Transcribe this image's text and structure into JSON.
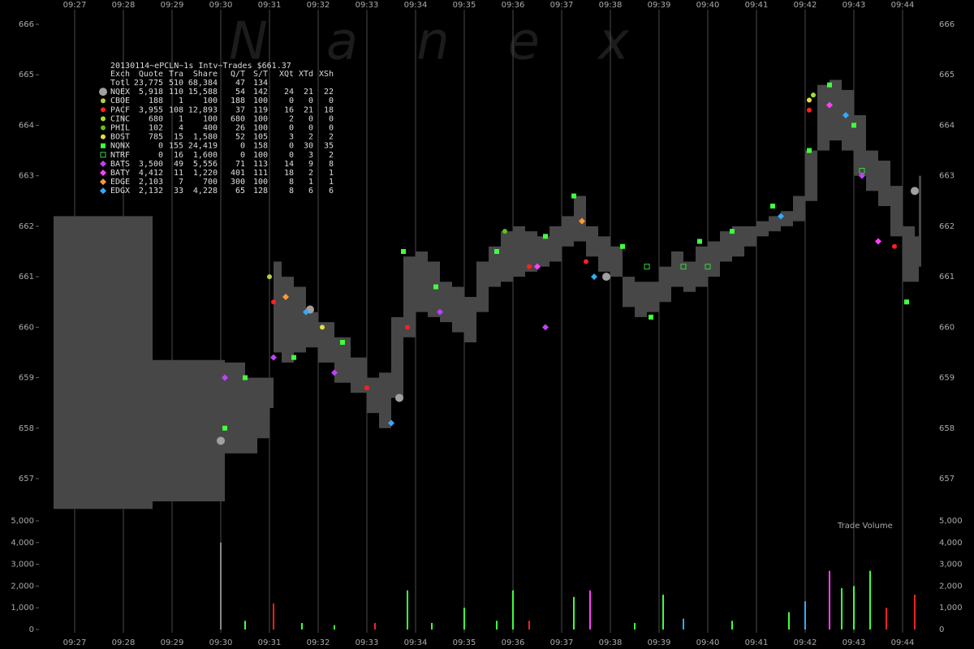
{
  "watermark": "Nanex",
  "chart_data": [
    {
      "type": "range",
      "title": "20130114~ePCLN~1s Intv~Trades $661.37",
      "color": "#474747",
      "xlim": [
        "09:25:28",
        "09:45:28"
      ],
      "xticks": [
        "09:27",
        "09:28",
        "09:29",
        "09:30",
        "09:31",
        "09:32",
        "09:33",
        "09:34",
        "09:35",
        "09:36",
        "09:37",
        "09:38",
        "09:39",
        "09:40",
        "09:41",
        "09:42",
        "09:43",
        "09:44"
      ],
      "ylim": [
        657,
        666
      ],
      "yticks": [
        657,
        658,
        659,
        660,
        661,
        662,
        663,
        664,
        665,
        666
      ],
      "grid": true,
      "x": [
        "09:26:34",
        "09:28:36",
        "09:30:05",
        "09:30:10",
        "09:30:30",
        "09:30:45",
        "09:31:00",
        "09:31:05",
        "09:31:15",
        "09:31:30",
        "09:31:45",
        "09:32:00",
        "09:32:20",
        "09:32:40",
        "09:33:00",
        "09:33:15",
        "09:33:30",
        "09:33:45",
        "09:34:00",
        "09:34:15",
        "09:34:30",
        "09:34:45",
        "09:35:00",
        "09:35:15",
        "09:35:30",
        "09:35:45",
        "09:36:00",
        "09:36:15",
        "09:36:30",
        "09:36:45",
        "09:37:00",
        "09:37:15",
        "09:37:30",
        "09:37:45",
        "09:38:00",
        "09:38:15",
        "09:38:30",
        "09:38:45",
        "09:39:00",
        "09:39:15",
        "09:39:30",
        "09:39:45",
        "09:40:00",
        "09:40:15",
        "09:40:30",
        "09:40:45",
        "09:41:00",
        "09:41:15",
        "09:41:30",
        "09:41:45",
        "09:42:00",
        "09:42:15",
        "09:42:30",
        "09:42:45",
        "09:43:00",
        "09:43:15",
        "09:43:30",
        "09:43:45",
        "09:44:00",
        "09:44:15",
        "09:44:20"
      ],
      "high": [
        662.2,
        659.35,
        659.3,
        659.3,
        659.0,
        659.0,
        659.0,
        661.3,
        661.0,
        660.8,
        660.3,
        660.1,
        659.8,
        659.4,
        659.0,
        659.1,
        660.2,
        661.4,
        661.5,
        661.3,
        660.9,
        660.8,
        660.6,
        661.3,
        661.6,
        661.9,
        662.0,
        661.9,
        661.8,
        662.0,
        662.2,
        662.6,
        662.0,
        661.8,
        661.6,
        661.0,
        660.9,
        660.9,
        661.2,
        661.5,
        661.3,
        661.6,
        661.7,
        661.9,
        662.0,
        662.0,
        662.1,
        662.2,
        662.3,
        662.6,
        663.5,
        664.8,
        664.9,
        664.7,
        664.2,
        663.5,
        663.3,
        662.8,
        662.0,
        661.8,
        663.0
      ],
      "low": [
        656.4,
        656.55,
        657.5,
        657.5,
        657.5,
        657.8,
        658.4,
        659.5,
        659.3,
        659.5,
        659.6,
        659.3,
        658.9,
        658.7,
        658.3,
        658.0,
        658.6,
        659.8,
        660.3,
        660.2,
        660.1,
        659.9,
        659.7,
        660.3,
        660.8,
        660.9,
        661.0,
        661.1,
        661.2,
        661.3,
        661.6,
        661.7,
        661.4,
        661.1,
        661.0,
        660.4,
        660.2,
        660.3,
        660.5,
        660.8,
        660.7,
        660.8,
        661.0,
        661.3,
        661.4,
        661.6,
        661.8,
        661.9,
        662.0,
        662.1,
        662.5,
        663.5,
        663.7,
        663.5,
        663.0,
        662.7,
        662.4,
        661.8,
        660.9,
        660.9,
        661.2
      ],
      "table": {
        "columns": [
          "Exch",
          "Quote",
          "Tra",
          "Share",
          "Q/T",
          "S/T",
          "XQt",
          "XTd",
          "XSh"
        ],
        "rows": [
          {
            "cells": [
              "Totl",
              "23,775",
              "510",
              "68,384",
              "47",
              "134"
            ]
          },
          {
            "cells": [
              "NQEX",
              "5,918",
              "110",
              "15,588",
              "54",
              "142",
              "24",
              "21",
              "22"
            ],
            "color": "#a0a0a0",
            "shape": "big-circle",
            "trades": {
              "x": [
                "09:30:00",
                "09:31:50",
                "09:33:40",
                "09:37:55",
                "09:44:15"
              ],
              "values": [
                657.75,
                660.35,
                658.6,
                661.0,
                662.7
              ]
            }
          },
          {
            "cells": [
              "CBOE",
              "188",
              "1",
              "100",
              "188",
              "100",
              "0",
              "0",
              "0"
            ],
            "color": "#b8d040",
            "shape": "circle",
            "trades": {
              "x": [
                "09:31:00"
              ],
              "values": [
                661.0
              ]
            }
          },
          {
            "cells": [
              "PACF",
              "3,955",
              "108",
              "12,893",
              "37",
              "119",
              "16",
              "21",
              "18"
            ],
            "color": "#ff2020",
            "shape": "circle",
            "trades": {
              "x": [
                "09:31:05",
                "09:33:00",
                "09:33:50",
                "09:36:20",
                "09:37:30",
                "09:42:05",
                "09:43:50"
              ],
              "values": [
                660.5,
                658.8,
                660.0,
                661.2,
                661.3,
                664.3,
                661.6
              ]
            }
          },
          {
            "cells": [
              "CINC",
              "680",
              "1",
              "100",
              "680",
              "100",
              "2",
              "0",
              "0"
            ],
            "color": "#a0e030",
            "shape": "circle",
            "trades": {
              "x": [
                "09:42:10"
              ],
              "values": [
                664.6
              ]
            }
          },
          {
            "cells": [
              "PHIL",
              "102",
              "4",
              "400",
              "26",
              "100",
              "0",
              "0",
              "0"
            ],
            "color": "#60c020",
            "shape": "circle",
            "trades": {
              "x": [
                "09:35:50"
              ],
              "values": [
                661.9
              ]
            }
          },
          {
            "cells": [
              "BOST",
              "785",
              "15",
              "1,580",
              "52",
              "105",
              "3",
              "2",
              "2"
            ],
            "color": "#e0e040",
            "shape": "circle",
            "trades": {
              "x": [
                "09:32:05",
                "09:42:05"
              ],
              "values": [
                660.0,
                664.5
              ]
            }
          },
          {
            "cells": [
              "NQNX",
              "0",
              "155",
              "24,419",
              "0",
              "158",
              "0",
              "30",
              "35"
            ],
            "color": "#40ff40",
            "shape": "square",
            "trades": {
              "x": [
                "09:30:05",
                "09:30:30",
                "09:31:30",
                "09:32:30",
                "09:33:45",
                "09:34:25",
                "09:35:40",
                "09:36:40",
                "09:37:15",
                "09:38:15",
                "09:38:50",
                "09:39:50",
                "09:40:30",
                "09:41:20",
                "09:42:05",
                "09:42:30",
                "09:43:00",
                "09:44:05"
              ],
              "values": [
                658.0,
                659.0,
                659.4,
                659.7,
                661.5,
                660.8,
                661.5,
                661.8,
                662.6,
                661.6,
                660.2,
                661.7,
                661.9,
                662.4,
                663.5,
                664.8,
                664.0,
                660.5
              ]
            }
          },
          {
            "cells": [
              "NTRF",
              "0",
              "16",
              "1,600",
              "0",
              "100",
              "0",
              "3",
              "2"
            ],
            "color": "#40d040",
            "shape": "square-outline",
            "trades": {
              "x": [
                "09:38:45",
                "09:39:30",
                "09:40:00",
                "09:43:10"
              ],
              "values": [
                661.2,
                661.2,
                661.2,
                663.1
              ]
            }
          },
          {
            "cells": [
              "BATS",
              "3,500",
              "49",
              "5,556",
              "71",
              "113",
              "14",
              "9",
              "8"
            ],
            "color": "#c040ff",
            "shape": "diamond",
            "trades": {
              "x": [
                "09:30:05",
                "09:31:05",
                "09:32:20",
                "09:34:30",
                "09:36:40",
                "09:43:10"
              ],
              "values": [
                659.0,
                659.4,
                659.1,
                660.3,
                660.0,
                663.0
              ]
            }
          },
          {
            "cells": [
              "BATY",
              "4,412",
              "11",
              "1,220",
              "401",
              "111",
              "18",
              "2",
              "1"
            ],
            "color": "#ff40ff",
            "shape": "diamond",
            "trades": {
              "x": [
                "09:36:30",
                "09:42:30",
                "09:43:30"
              ],
              "values": [
                661.2,
                664.4,
                661.7
              ]
            }
          },
          {
            "cells": [
              "EDGE",
              "2,103",
              "7",
              "700",
              "300",
              "100",
              "8",
              "1",
              "1"
            ],
            "color": "#ff9933",
            "shape": "diamond",
            "trades": {
              "x": [
                "09:31:20",
                "09:37:25"
              ],
              "values": [
                660.6,
                662.1
              ]
            }
          },
          {
            "cells": [
              "EDGX",
              "2,132",
              "33",
              "4,228",
              "65",
              "128",
              "8",
              "6",
              "6"
            ],
            "color": "#33aaff",
            "shape": "diamond",
            "trades": {
              "x": [
                "09:31:45",
                "09:33:30",
                "09:37:40",
                "09:41:30",
                "09:42:50"
              ],
              "values": [
                660.3,
                658.1,
                661.0,
                662.2,
                664.2
              ]
            }
          }
        ]
      }
    },
    {
      "type": "bar",
      "title": "Trade Volume",
      "xlim": [
        "09:25:28",
        "09:45:28"
      ],
      "xticks": [
        "09:27",
        "09:28",
        "09:29",
        "09:30",
        "09:31",
        "09:32",
        "09:33",
        "09:34",
        "09:35",
        "09:36",
        "09:37",
        "09:38",
        "09:39",
        "09:40",
        "09:41",
        "09:42",
        "09:43",
        "09:44"
      ],
      "ylim": [
        0,
        5000
      ],
      "yticks": [
        0,
        {
          "value": 1000,
          "label": "1,000"
        },
        {
          "value": 2000,
          "label": "2,000"
        },
        {
          "value": 3000,
          "label": "3,000"
        },
        {
          "value": 4000,
          "label": "4,000"
        },
        {
          "value": 5000,
          "label": "5,000"
        }
      ],
      "x": [
        "09:30:00",
        "09:30:30",
        "09:31:05",
        "09:31:40",
        "09:32:20",
        "09:33:10",
        "09:33:50",
        "09:34:20",
        "09:35:00",
        "09:35:40",
        "09:36:00",
        "09:36:20",
        "09:37:15",
        "09:37:35",
        "09:38:30",
        "09:39:05",
        "09:39:30",
        "09:40:30",
        "09:41:40",
        "09:42:00",
        "09:42:30",
        "09:42:45",
        "09:43:00",
        "09:43:20",
        "09:43:40",
        "09:44:15"
      ],
      "values": [
        4000,
        400,
        1200,
        300,
        200,
        300,
        1800,
        300,
        1000,
        400,
        1800,
        400,
        1500,
        1800,
        300,
        1600,
        500,
        400,
        800,
        1300,
        2700,
        1900,
        2000,
        2700,
        1000,
        1600
      ],
      "colors": [
        "#888888",
        "#40ff40",
        "#ff2020",
        "#40ff40",
        "#40ff40",
        "#ff2020",
        "#40ff40",
        "#40ff40",
        "#40ff40",
        "#40ff40",
        "#40ff40",
        "#ff2020",
        "#40ff40",
        "#ff40ff",
        "#40ff40",
        "#40ff40",
        "#33aaff",
        "#40ff40",
        "#40ff40",
        "#33aaff",
        "#ff40ff",
        "#40ff40",
        "#40ff40",
        "#40ff40",
        "#ff2020",
        "#ff2020"
      ]
    }
  ]
}
